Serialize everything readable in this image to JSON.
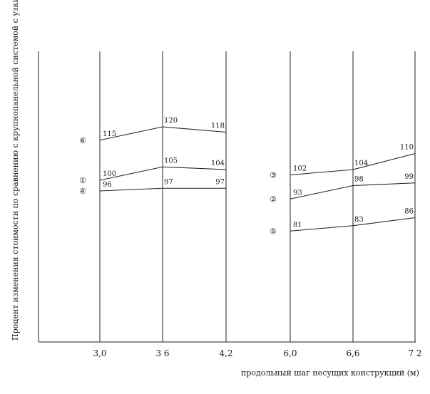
{
  "chart_data": {
    "type": "line",
    "ylabel": "Процент изменения стоимости по сравнению с крупнопанельной системой с узким шагом несущих стен",
    "xlabel": "продольный шаг несущих конструкций (м)",
    "grid": "vertical",
    "x_ticks": [
      "3,0",
      "3 6",
      "4,2",
      "6,0",
      "6,6",
      "7 2"
    ],
    "panels": [
      {
        "x": [
          3.0,
          3.6,
          4.2
        ],
        "series": [
          {
            "marker": "⑥",
            "values": [
              115,
              120,
              118
            ],
            "value_labels": [
              "115",
              "120",
              "118"
            ]
          },
          {
            "marker": "①",
            "values": [
              100,
              105,
              104
            ],
            "value_labels": [
              "100",
              "105",
              "104"
            ]
          },
          {
            "marker": "④",
            "values": [
              96,
              97,
              97
            ],
            "value_labels": [
              "96",
              "97",
              "97"
            ]
          }
        ]
      },
      {
        "x": [
          6.0,
          6.6,
          7.2
        ],
        "series": [
          {
            "marker": "③",
            "values": [
              102,
              104,
              110
            ],
            "value_labels": [
              "102",
              "104",
              "110"
            ]
          },
          {
            "marker": "②",
            "values": [
              93,
              98,
              99
            ],
            "value_labels": [
              "93",
              "98",
              "99"
            ]
          },
          {
            "marker": "⑤",
            "values": [
              81,
              83,
              86
            ],
            "value_labels": [
              "81",
              "83",
              "86"
            ]
          }
        ]
      }
    ]
  }
}
